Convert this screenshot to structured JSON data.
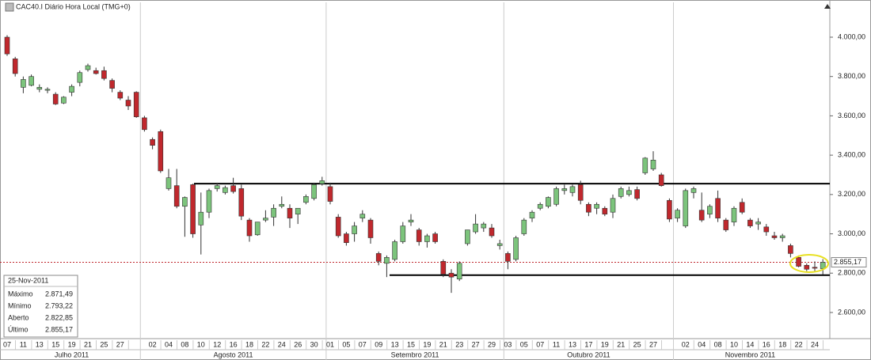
{
  "chart_data": {
    "type": "candlestick",
    "title": "CAC40.I Diário Hora Local (TMG+0)",
    "months": [
      {
        "label": "Julho 2011",
        "days": [
          "07",
          null,
          "11",
          null,
          "13",
          null,
          "15",
          null,
          "19",
          null,
          "21",
          null,
          "25",
          null,
          "27",
          null,
          null
        ]
      },
      {
        "label": "Agosto 2011",
        "days": [
          null,
          "02",
          null,
          "04",
          null,
          "08",
          null,
          "10",
          null,
          "12",
          null,
          "16",
          null,
          "18",
          null,
          "22",
          null,
          "24",
          null,
          "26",
          null,
          "30",
          null
        ]
      },
      {
        "label": "Setembro 2011",
        "days": [
          "01",
          null,
          "05",
          null,
          "07",
          null,
          "09",
          null,
          "13",
          null,
          "15",
          null,
          "19",
          null,
          "21",
          null,
          "23",
          null,
          "27",
          null,
          "29",
          null
        ]
      },
      {
        "label": "Outubro 2011",
        "days": [
          "03",
          null,
          "05",
          null,
          "07",
          null,
          "11",
          null,
          "13",
          null,
          "17",
          null,
          "19",
          null,
          "21",
          null,
          "25",
          null,
          "27",
          null,
          null
        ]
      },
      {
        "label": "Novembro 2011",
        "days": [
          null,
          "02",
          null,
          "04",
          null,
          "08",
          null,
          "10",
          null,
          "14",
          null,
          "16",
          null,
          "18",
          null,
          "22",
          null,
          "24",
          null
        ]
      }
    ],
    "open": [
      4000,
      3890,
      3745,
      3755,
      3735,
      3730,
      3710,
      3665,
      3720,
      3770,
      3835,
      3830,
      3830,
      3780,
      3720,
      3680,
      3720,
      3590,
      3480,
      3520,
      3230,
      3245,
      3140,
      3250,
      3045,
      3110,
      3230,
      3210,
      3245,
      3230,
      3070,
      2995,
      3070,
      3085,
      3140,
      3130,
      3100,
      3160,
      3180,
      3255,
      3240,
      3085,
      3000,
      3000,
      3080,
      3070,
      2900,
      2850,
      2870,
      2960,
      3060,
      3020,
      2960,
      3000,
      2860,
      2800,
      2770,
      2950,
      3010,
      3030,
      3030,
      2940,
      2900,
      2870,
      3000,
      3080,
      3130,
      3140,
      3150,
      3220,
      3210,
      3250,
      3150,
      3130,
      3130,
      3110,
      3190,
      3200,
      3225,
      3310,
      3330,
      3300,
      3170,
      3080,
      3040,
      3210,
      3120,
      3100,
      3180,
      3070,
      3060,
      3160,
      3070,
      3050,
      3035,
      2990,
      2980,
      2940,
      2880,
      2840,
      2830,
      2822.85
    ],
    "high": [
      4010,
      3900,
      3800,
      3810,
      3760,
      3745,
      3720,
      3700,
      3760,
      3830,
      3865,
      3845,
      3850,
      3790,
      3730,
      3700,
      3725,
      3600,
      3490,
      3530,
      3330,
      3330,
      3190,
      3255,
      3210,
      3230,
      3260,
      3245,
      3285,
      3250,
      3080,
      3060,
      3120,
      3150,
      3190,
      3150,
      3130,
      3200,
      3260,
      3290,
      3260,
      3100,
      3010,
      3060,
      3120,
      3080,
      2910,
      2890,
      2970,
      3060,
      3100,
      3030,
      3000,
      3010,
      2870,
      2820,
      2860,
      3020,
      3100,
      3060,
      3050,
      2970,
      2910,
      2990,
      3080,
      3120,
      3160,
      3190,
      3240,
      3250,
      3250,
      3270,
      3160,
      3160,
      3140,
      3200,
      3240,
      3240,
      3240,
      3390,
      3420,
      3310,
      3180,
      3130,
      3230,
      3240,
      3210,
      3150,
      3220,
      3080,
      3140,
      3180,
      3080,
      3080,
      3050,
      3010,
      3000,
      2950,
      2890,
      2850,
      2860,
      2871.49
    ],
    "low": [
      3905,
      3800,
      3715,
      3750,
      3720,
      3715,
      3655,
      3660,
      3700,
      3750,
      3825,
      3810,
      3780,
      3720,
      3680,
      3630,
      3590,
      3520,
      3430,
      3310,
      3220,
      3130,
      2985,
      2980,
      2895,
      3080,
      3215,
      3200,
      3205,
      3070,
      2960,
      2990,
      3060,
      3040,
      3130,
      3030,
      3050,
      3150,
      3170,
      3245,
      3150,
      2980,
      2940,
      2960,
      3060,
      2950,
      2840,
      2780,
      2860,
      2950,
      3040,
      2940,
      2930,
      2950,
      2780,
      2700,
      2760,
      2940,
      3000,
      3010,
      2980,
      2920,
      2820,
      2860,
      2990,
      3060,
      3120,
      3130,
      3140,
      3200,
      3190,
      3150,
      3090,
      3100,
      3090,
      3080,
      3180,
      3190,
      3170,
      3300,
      3320,
      3240,
      3060,
      3060,
      3030,
      3180,
      3060,
      3080,
      3060,
      3010,
      3040,
      3100,
      3030,
      3020,
      2990,
      2970,
      2960,
      2880,
      2830,
      2810,
      2810,
      2793.22
    ],
    "close": [
      3915,
      3815,
      3785,
      3800,
      3745,
      3735,
      3660,
      3695,
      3750,
      3820,
      3855,
      3815,
      3790,
      3740,
      3690,
      3650,
      3595,
      3530,
      3450,
      3320,
      3285,
      3140,
      3185,
      3000,
      3110,
      3220,
      3245,
      3235,
      3215,
      3090,
      2990,
      3060,
      3080,
      3130,
      3150,
      3080,
      3130,
      3190,
      3250,
      3270,
      3165,
      2990,
      2955,
      3040,
      3100,
      2980,
      2860,
      2880,
      2960,
      3040,
      3070,
      2960,
      2990,
      2960,
      2795,
      2780,
      2850,
      3020,
      3050,
      3050,
      2990,
      2950,
      2860,
      2980,
      3070,
      3110,
      3150,
      3185,
      3230,
      3230,
      3240,
      3170,
      3110,
      3150,
      3100,
      3180,
      3230,
      3220,
      3180,
      3385,
      3375,
      3245,
      3075,
      3120,
      3220,
      3230,
      3070,
      3140,
      3080,
      3020,
      3130,
      3110,
      3040,
      3060,
      3010,
      2980,
      2990,
      2900,
      2835,
      2820,
      2825,
      2855.17
    ],
    "up_color": "#7cc47c",
    "down_color": "#c0282d",
    "ylim": [
      2467,
      4177
    ],
    "yticks": [
      {
        "value": 2600,
        "label": "2.600,00"
      },
      {
        "value": 2800,
        "label": "2.800,00"
      },
      {
        "value": 3000,
        "label": "3.000,00"
      },
      {
        "value": 3200,
        "label": "3.200,00"
      },
      {
        "value": 3400,
        "label": "3.400,00"
      },
      {
        "value": 3600,
        "label": "3.600,00"
      },
      {
        "value": 3800,
        "label": "3.800,00"
      },
      {
        "value": 4000,
        "label": "4.000,00"
      }
    ],
    "lines": [
      3255,
      2790
    ],
    "last": {
      "value": 2855.17,
      "label": "2.855,17"
    },
    "info": {
      "date": "25-Nov-2011",
      "rows": [
        {
          "name": "Máximo",
          "value": "2.871,49"
        },
        {
          "name": "Mínimo",
          "value": "2.793,22"
        },
        {
          "name": "Aberto",
          "value": "2.822,85"
        },
        {
          "name": "Último",
          "value": "2.855,17"
        }
      ]
    }
  }
}
